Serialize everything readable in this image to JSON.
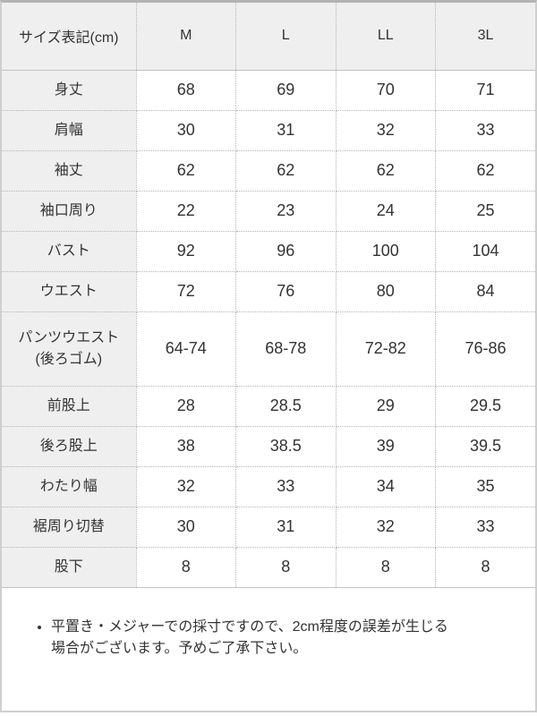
{
  "table": {
    "header": {
      "label": "サイズ表記(cm)",
      "sizes": [
        "M",
        "L",
        "LL",
        "3L"
      ]
    },
    "rows": [
      {
        "label": "身丈",
        "values": [
          "68",
          "69",
          "70",
          "71"
        ]
      },
      {
        "label": "肩幅",
        "values": [
          "30",
          "31",
          "32",
          "33"
        ]
      },
      {
        "label": "袖丈",
        "values": [
          "62",
          "62",
          "62",
          "62"
        ]
      },
      {
        "label": "袖口周り",
        "values": [
          "22",
          "23",
          "24",
          "25"
        ]
      },
      {
        "label": "バスト",
        "values": [
          "92",
          "96",
          "100",
          "104"
        ]
      },
      {
        "label": "ウエスト",
        "values": [
          "72",
          "76",
          "80",
          "84"
        ]
      },
      {
        "label": "パンツウエスト\n(後ろゴム)",
        "values": [
          "64-74",
          "68-78",
          "72-82",
          "76-86"
        ]
      },
      {
        "label": "前股上",
        "values": [
          "28",
          "28.5",
          "29",
          "29.5"
        ]
      },
      {
        "label": "後ろ股上",
        "values": [
          "38",
          "38.5",
          "39",
          "39.5"
        ]
      },
      {
        "label": "わたり幅",
        "values": [
          "32",
          "33",
          "34",
          "35"
        ]
      },
      {
        "label": "裾周り切替",
        "values": [
          "30",
          "31",
          "32",
          "33"
        ]
      },
      {
        "label": "股下",
        "values": [
          "8",
          "8",
          "8",
          "8"
        ]
      }
    ]
  },
  "note": {
    "text": "平置き・メジャーでの採寸ですので、2cm程度の誤差が生じる場合がございます。予めご了承下さい。"
  },
  "colors": {
    "header_bg": "#efefef",
    "outer_border": "#b3b3b3",
    "inner_border": "#b5b5b5",
    "text": "#333333"
  }
}
